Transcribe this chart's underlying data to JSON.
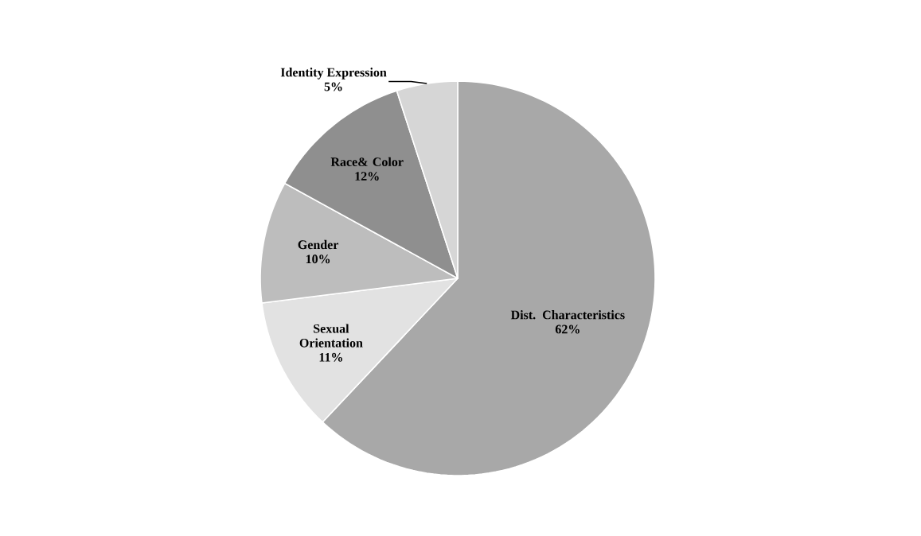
{
  "chart_data": {
    "type": "pie",
    "categories": [
      "Dist. Characteristics",
      "Sexual Orientation",
      "Gender",
      "Race& Color",
      "Identity Expression"
    ],
    "values": [
      62,
      11,
      10,
      12,
      5
    ],
    "value_labels": [
      "62%",
      "11%",
      "10%",
      "12%",
      "5%"
    ],
    "colors": [
      "#a8a8a8",
      "#e2e2e2",
      "#bdbdbd",
      "#8f8f8f",
      "#d6d6d6"
    ]
  }
}
